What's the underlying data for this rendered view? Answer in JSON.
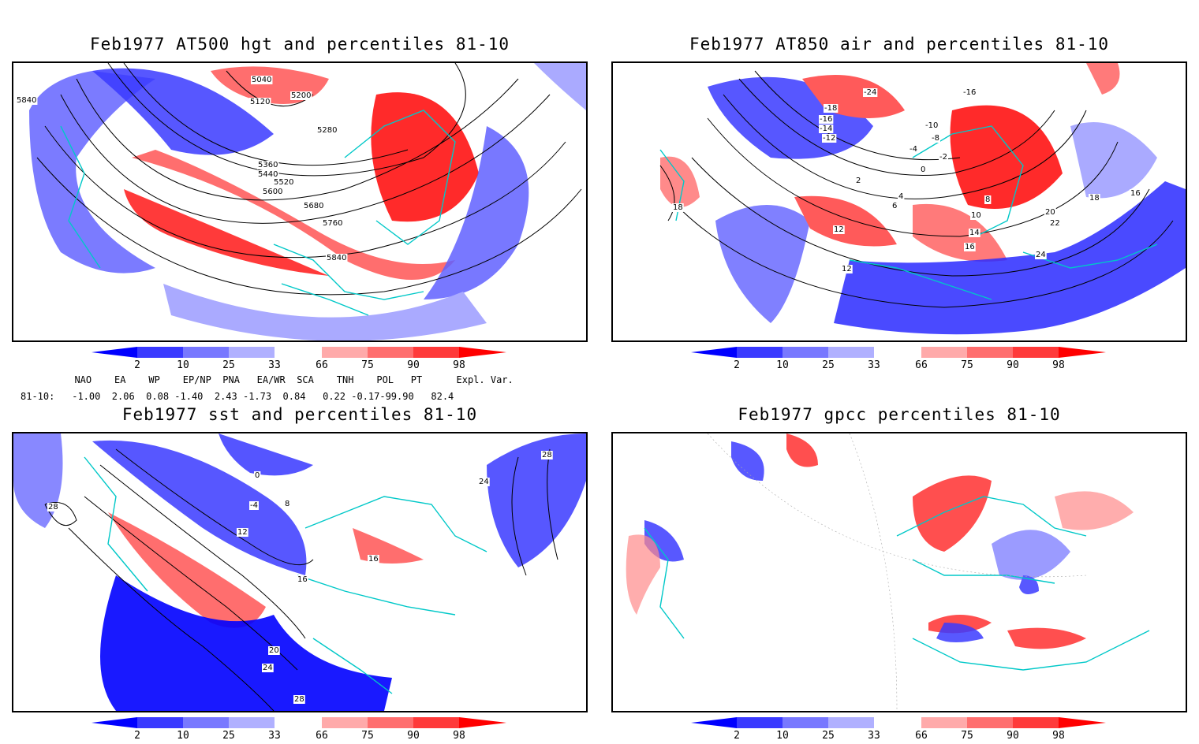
{
  "panels": [
    {
      "id": "tl",
      "title": "Feb1977 AT500 hgt and percentiles 81-10",
      "contour_labels": [
        "5040",
        "5120",
        "5200",
        "5280",
        "5360",
        "5440",
        "5520",
        "5600",
        "5680",
        "5760",
        "5840",
        "5840"
      ]
    },
    {
      "id": "tr",
      "title": "Feb1977 AT850 air and percentiles 81-10",
      "contour_labels": [
        "-18",
        "-16",
        "-14",
        "-12",
        "-24",
        "-10",
        "-8",
        "-4",
        "-2",
        "0",
        "2",
        "4",
        "6",
        "8",
        "10",
        "12",
        "14",
        "16",
        "18",
        "20",
        "22",
        "24",
        "-16",
        "18",
        "16",
        "12"
      ]
    },
    {
      "id": "bl",
      "title": "Feb1977 sst and percentiles 81-10",
      "contour_labels": [
        "28",
        "0",
        "-4",
        "8",
        "12",
        "16",
        "20",
        "24",
        "28",
        "24",
        "28",
        "16"
      ]
    },
    {
      "id": "br",
      "title": "Feb1977 gpcc percentiles 81-10",
      "contour_labels": []
    }
  ],
  "colorbar": {
    "labels": [
      "2",
      "10",
      "25",
      "33",
      "66",
      "75",
      "90",
      "98"
    ],
    "colors": [
      "#0000ff",
      "#3a3aff",
      "#7878ff",
      "#b0b0ff",
      "#ffffff",
      "#ffaaaa",
      "#ff6e6e",
      "#ff3a3a",
      "#ff0000"
    ]
  },
  "indices": {
    "header": "  NAO    EA    WP    EP/NP  PNA   EA/WR  SCA    TNH    POL   PT      Expl. Var.",
    "row_label": "81-10:",
    "values": " -1.00  2.06  0.08 -1.40  2.43 -1.73  0.84   0.22 -0.17-99.90   82.4"
  },
  "colors": {
    "blue_dark": "#0000ff",
    "blue_mid": "#4646ff",
    "blue_light": "#aaaaff",
    "red_light": "#ffa0a0",
    "red_mid": "#ff5a5a",
    "red_dark": "#ff1e1e",
    "coast": "#00c8c8"
  }
}
